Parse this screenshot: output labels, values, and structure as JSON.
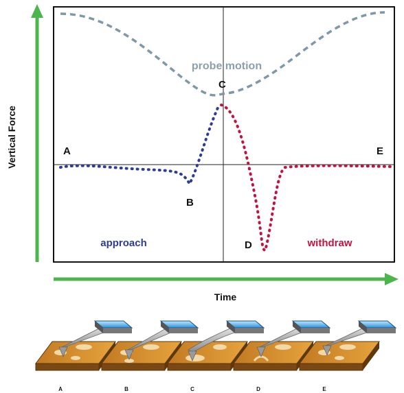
{
  "axes": {
    "y_label": "Vertical Force",
    "x_label": "Time",
    "arrow_color": "#4cb54c"
  },
  "curves": {
    "probe_motion": {
      "label": "probe motion",
      "color": "#7f97a6"
    },
    "approach": {
      "label": "approach",
      "color": "#2d3d96"
    },
    "withdraw": {
      "label": "withdraw",
      "color": "#c4123f"
    }
  },
  "points": {
    "a": "A",
    "b": "B",
    "c": "C",
    "d": "D",
    "e": "E"
  },
  "stages": [
    {
      "label": "A"
    },
    {
      "label": "B"
    },
    {
      "label": "C"
    },
    {
      "label": "D"
    },
    {
      "label": "E"
    }
  ]
}
